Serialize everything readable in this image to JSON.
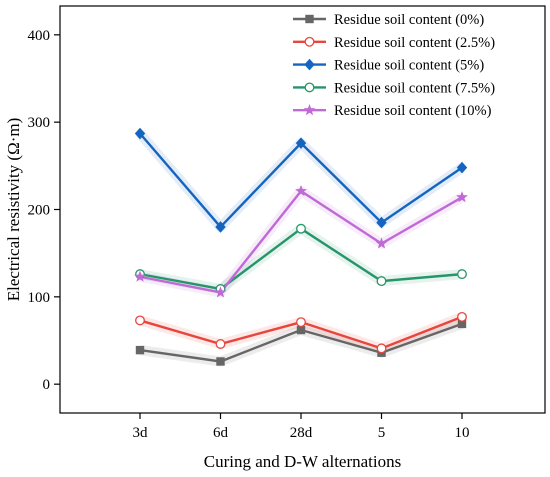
{
  "chart_data": {
    "type": "line",
    "title": "",
    "xlabel": "Curing and D-W alternations",
    "ylabel": "Electrical resistivity (Ω·m)",
    "categories": [
      "3d",
      "6d",
      "28d",
      "5",
      "10"
    ],
    "ylim": [
      -33,
      433
    ],
    "yticks": [
      0,
      100,
      200,
      300,
      400
    ],
    "grid": false,
    "legend_position": "top-right",
    "series": [
      {
        "name": "Residue soil content (0%)",
        "color": "#666666",
        "marker": "square",
        "values": [
          39,
          26,
          62,
          36,
          69
        ]
      },
      {
        "name": "Residue soil content (2.5%)",
        "color": "#e8463c",
        "marker": "circle-open",
        "values": [
          73,
          46,
          71,
          41,
          77
        ]
      },
      {
        "name": "Residue soil content (5%)",
        "color": "#1565c0",
        "marker": "diamond",
        "values": [
          287,
          180,
          276,
          185,
          248
        ]
      },
      {
        "name": "Residue soil content (7.5%)",
        "color": "#26956a",
        "marker": "circle-open",
        "values": [
          126,
          109,
          178,
          118,
          126
        ]
      },
      {
        "name": "Residue soil content (10%)",
        "color": "#c06ad6",
        "marker": "star",
        "values": [
          123,
          105,
          221,
          161,
          214
        ]
      }
    ]
  }
}
